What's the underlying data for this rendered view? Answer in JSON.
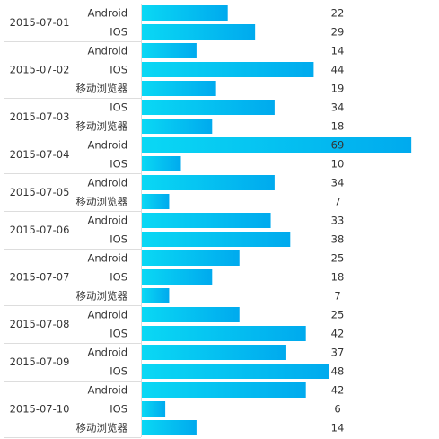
{
  "chart_data": {
    "type": "bar",
    "orientation": "horizontal",
    "title": "",
    "xlabel": "",
    "ylabel": "",
    "xlim": [
      0,
      70
    ],
    "grid": false,
    "legend": "none",
    "bar_color_start": "#0ad8f4",
    "bar_color_end": "#00aaee",
    "groups": [
      {
        "date": "2015-07-01",
        "items": [
          {
            "label": "Android",
            "value": 22
          },
          {
            "label": "IOS",
            "value": 29
          }
        ]
      },
      {
        "date": "2015-07-02",
        "items": [
          {
            "label": "Android",
            "value": 14
          },
          {
            "label": "IOS",
            "value": 44
          },
          {
            "label": "移动浏览器",
            "value": 19
          }
        ]
      },
      {
        "date": "2015-07-03",
        "items": [
          {
            "label": "IOS",
            "value": 34
          },
          {
            "label": "移动浏览器",
            "value": 18
          }
        ]
      },
      {
        "date": "2015-07-04",
        "items": [
          {
            "label": "Android",
            "value": 69
          },
          {
            "label": "IOS",
            "value": 10
          }
        ]
      },
      {
        "date": "2015-07-05",
        "items": [
          {
            "label": "Android",
            "value": 34
          },
          {
            "label": "移动浏览器",
            "value": 7
          }
        ]
      },
      {
        "date": "2015-07-06",
        "items": [
          {
            "label": "Android",
            "value": 33
          },
          {
            "label": "IOS",
            "value": 38
          }
        ]
      },
      {
        "date": "2015-07-07",
        "items": [
          {
            "label": "Android",
            "value": 25
          },
          {
            "label": "IOS",
            "value": 18
          },
          {
            "label": "移动浏览器",
            "value": 7
          }
        ]
      },
      {
        "date": "2015-07-08",
        "items": [
          {
            "label": "Android",
            "value": 25
          },
          {
            "label": "IOS",
            "value": 42
          }
        ]
      },
      {
        "date": "2015-07-09",
        "items": [
          {
            "label": "Android",
            "value": 37
          },
          {
            "label": "IOS",
            "value": 48
          }
        ]
      },
      {
        "date": "2015-07-10",
        "items": [
          {
            "label": "Android",
            "value": 42
          },
          {
            "label": "IOS",
            "value": 6
          },
          {
            "label": "移动浏览器",
            "value": 14
          }
        ]
      }
    ]
  }
}
